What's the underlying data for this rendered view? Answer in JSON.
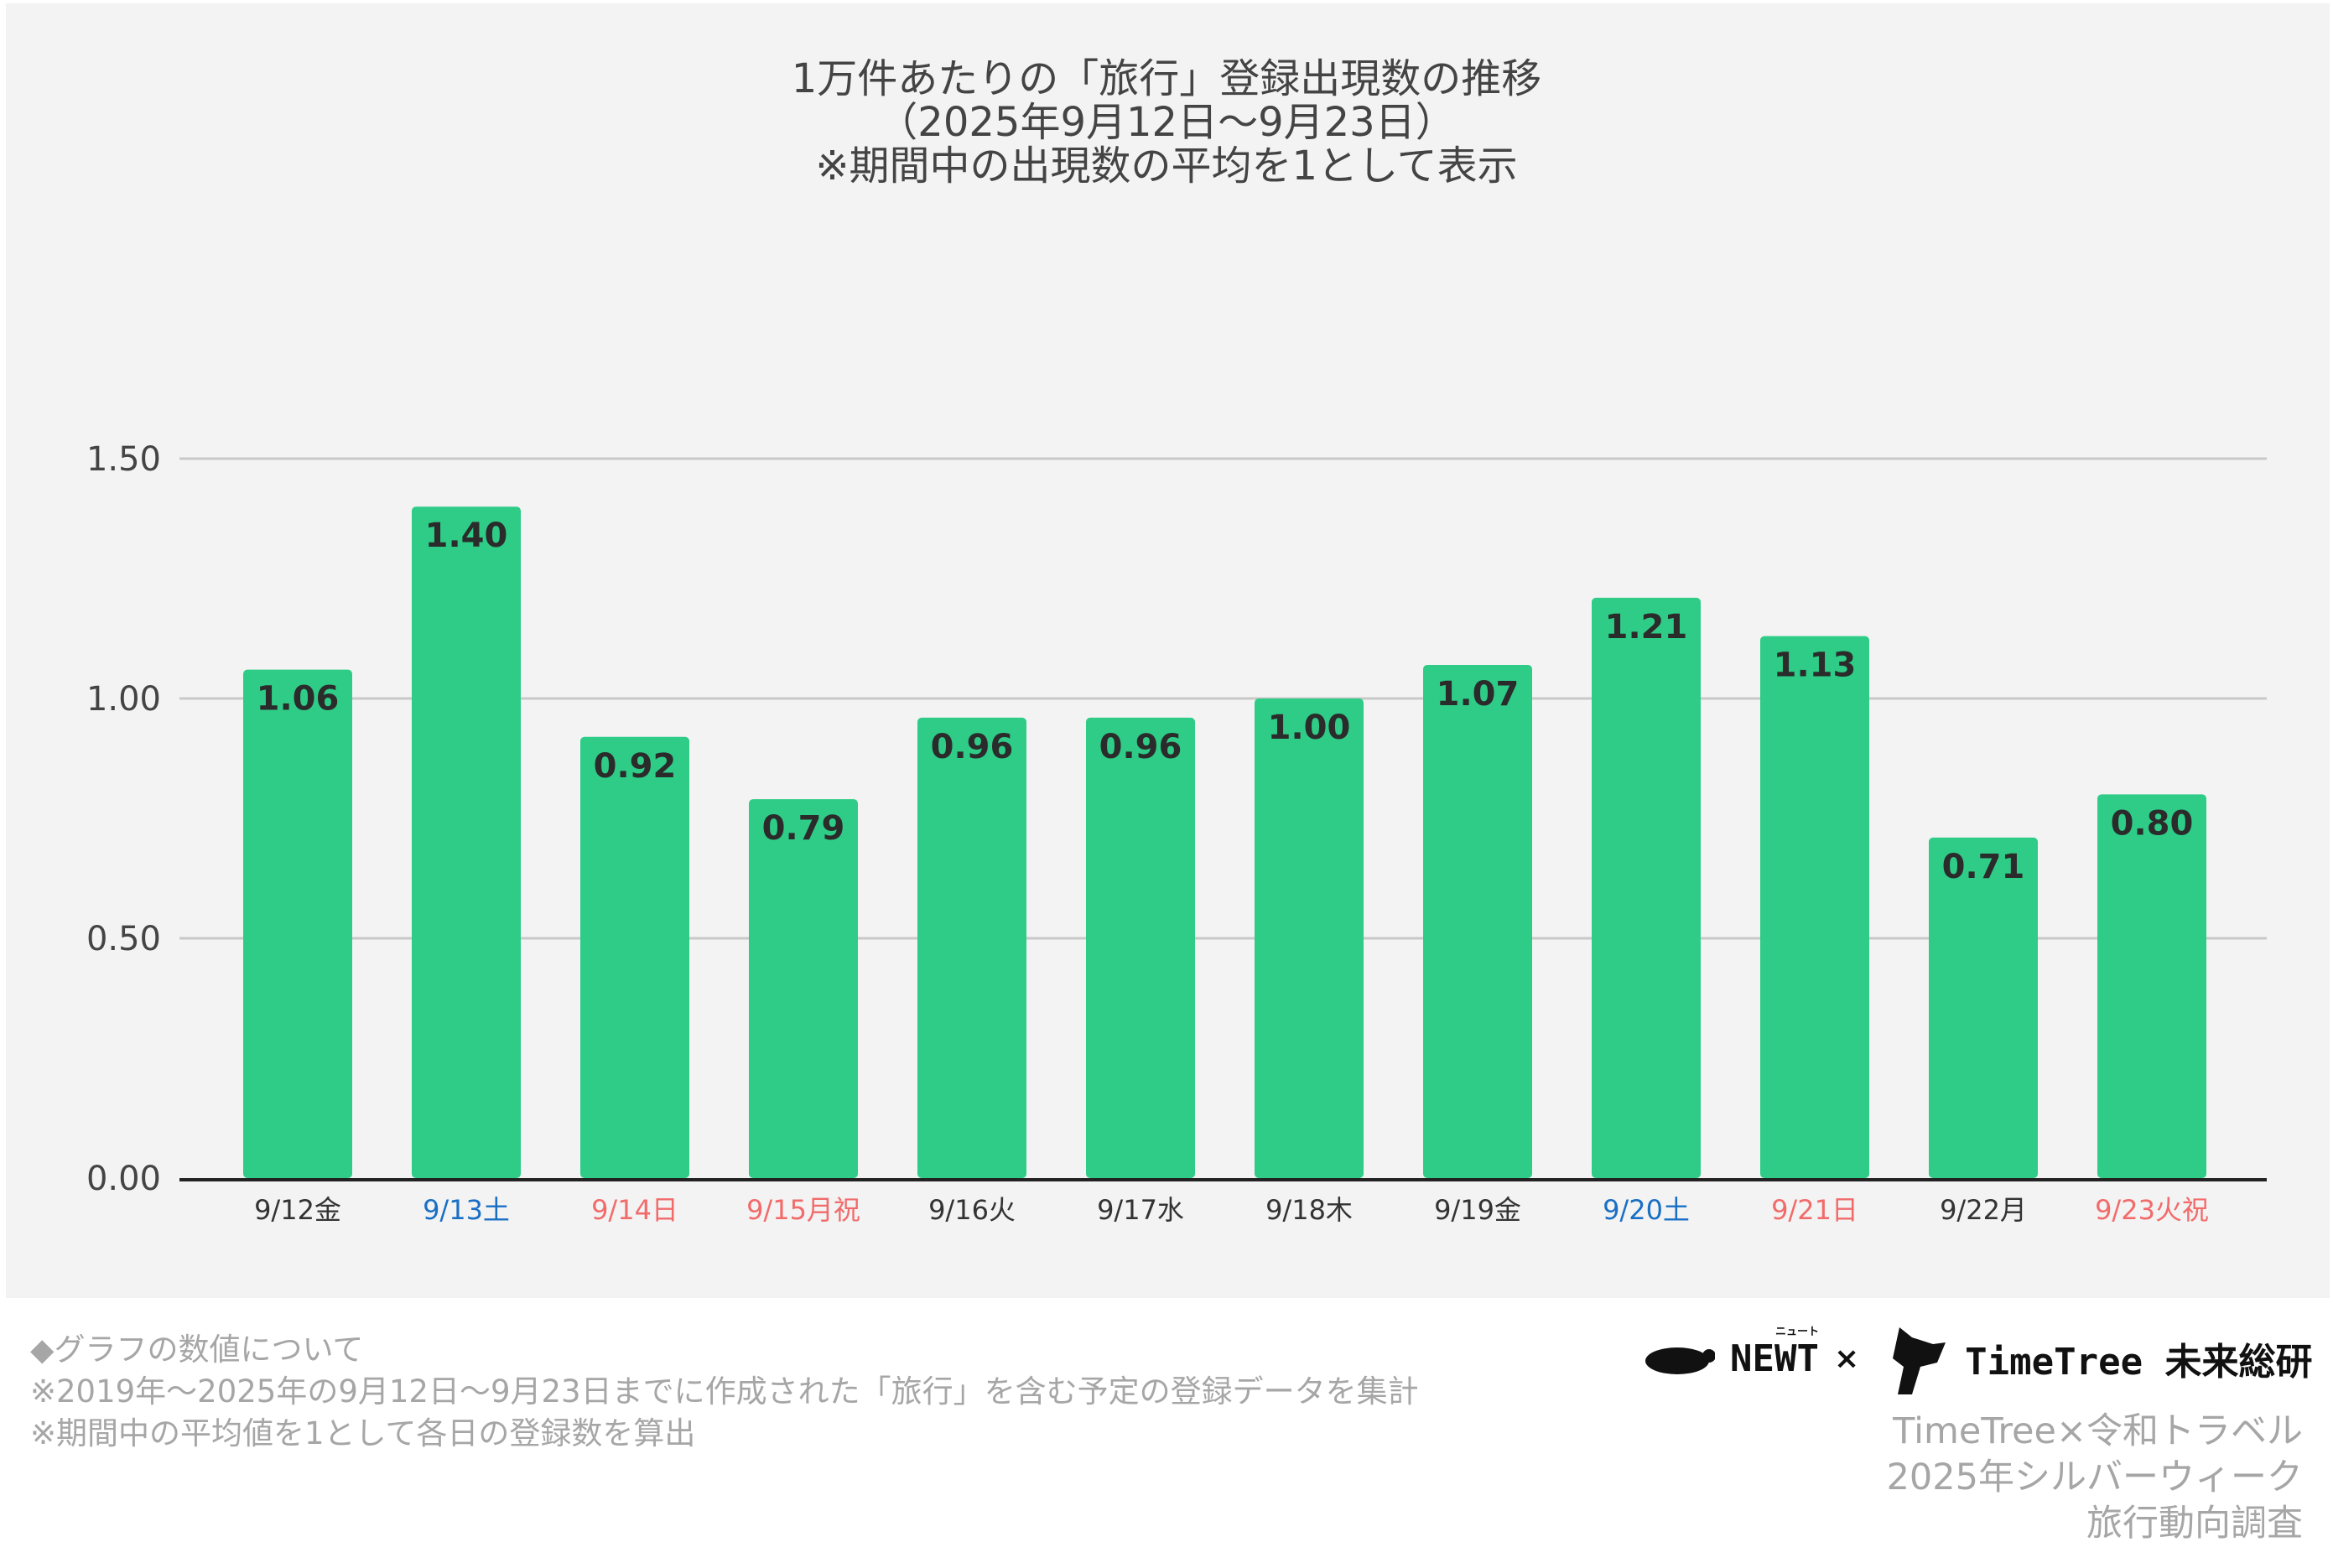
{
  "title_lines": [
    "1万件あたりの「旅行」登録出現数の推移",
    "（2025年9月12日〜9月23日）",
    "※期間中の出現数の平均を1として表示"
  ],
  "chart_data": {
    "type": "bar",
    "title": "1万件あたりの「旅行」登録出現数の推移（2025年9月12日〜9月23日）※期間中の出現数の平均を1として表示",
    "categories": [
      "9/12金",
      "9/13土",
      "9/14日",
      "9/15月祝",
      "9/16火",
      "9/17水",
      "9/18木",
      "9/19金",
      "9/20土",
      "9/21日",
      "9/22月",
      "9/23火祝"
    ],
    "category_colors": [
      "#333333",
      "#1a6fc4",
      "#f26b6b",
      "#f26b6b",
      "#333333",
      "#333333",
      "#333333",
      "#333333",
      "#1a6fc4",
      "#f26b6b",
      "#333333",
      "#f26b6b"
    ],
    "values": [
      1.06,
      1.4,
      0.92,
      0.79,
      0.96,
      0.96,
      1.0,
      1.07,
      1.21,
      1.13,
      0.71,
      0.8
    ],
    "value_labels": [
      "1.06",
      "1.40",
      "0.92",
      "0.79",
      "0.96",
      "0.96",
      "1.00",
      "1.07",
      "1.21",
      "1.13",
      "0.71",
      "0.80"
    ],
    "yticks": [
      0,
      0.5,
      1.0,
      1.5
    ],
    "ytick_labels": [
      "0.00",
      "0.50",
      "1.00",
      "1.50"
    ],
    "ylim": [
      0,
      1.5
    ],
    "xlabel": "",
    "ylabel": "",
    "grid": true,
    "bar_color": "#2ecc87"
  },
  "footer": {
    "notes": [
      "◆グラフの数値について",
      "※2019年〜2025年の9月12日〜9月23日までに作成された「旅行」を含む予定の登録データを集計",
      "※期間中の平均値を1として各日の登録数を算出"
    ],
    "credit": [
      "TimeTree×令和トラベル",
      "2025年シルバーウィーク",
      "旅行動向調査"
    ],
    "logo_newt": "NEWT",
    "logo_newt_ruby": "ニュート",
    "logo_times": "×",
    "logo_timetree": "TimeTree 未来総研"
  }
}
